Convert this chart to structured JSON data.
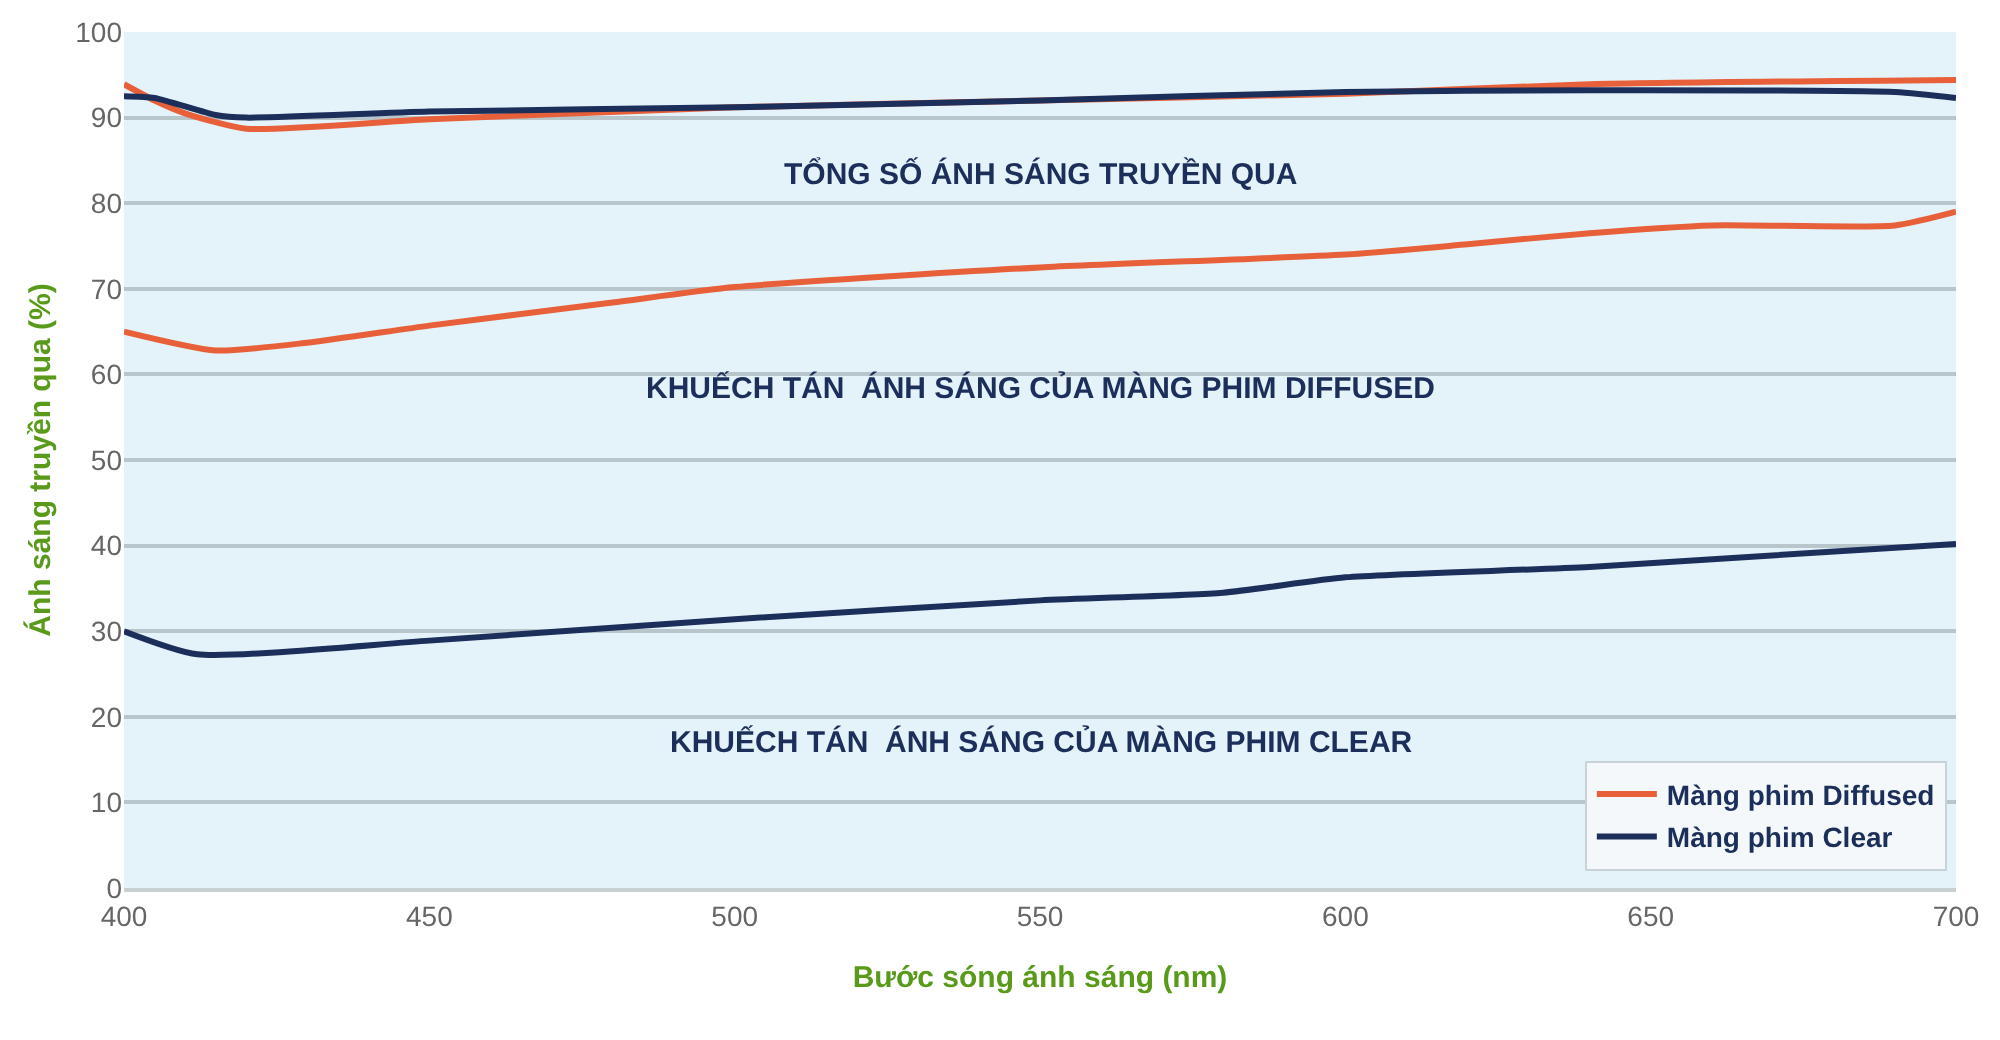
{
  "chart_data": {
    "type": "line",
    "xlabel": "Bước sóng ánh sáng (nm)",
    "ylabel": "Ánh sáng truyền qua (%)",
    "xlim": [
      400,
      700
    ],
    "xticks": [
      400,
      450,
      500,
      550,
      600,
      650,
      700
    ],
    "ylim": [
      0,
      100
    ],
    "yticks": [
      0,
      10,
      20,
      30,
      40,
      50,
      60,
      70,
      80,
      90,
      100
    ],
    "grid": "y",
    "legend": "bottom right",
    "marker": "none",
    "line_style": "solid",
    "annotations": [
      "TỔNG SỐ ÁNH SÁNG TRUYỀN QUA",
      "KHUẾCH TÁN  ÁNH SÁNG CỦA MÀNG PHIM DIFFUSED",
      "KHUẾCH TÁN  ÁNH SÁNG CỦA MÀNG PHIM CLEAR"
    ],
    "series": [
      {
        "name": "Màng phim Diffused",
        "color": "#e8603a",
        "x": [
          400,
          405,
          410,
          420,
          450,
          500,
          550,
          600,
          640,
          700
        ],
        "values": [
          93.9,
          92,
          90.5,
          88.7,
          89.8,
          91.2,
          92,
          92.8,
          93.9,
          94.4
        ]
      },
      {
        "name": "Màng phim Clear",
        "color": "#1c2f5a",
        "x": [
          400,
          405,
          415,
          420,
          450,
          500,
          550,
          600,
          640,
          690,
          700
        ],
        "values": [
          92.5,
          92.3,
          90.3,
          90,
          90.7,
          91.2,
          92,
          93,
          93.2,
          93,
          92.3
        ]
      },
      {
        "color": "#e8603a",
        "x": [
          400,
          415,
          430,
          450,
          480,
          500,
          550,
          600,
          620,
          640,
          660,
          690,
          700
        ],
        "values": [
          65,
          62.8,
          63.7,
          65.7,
          68.4,
          70.2,
          72.5,
          74,
          75.2,
          76.5,
          77.4,
          77.4,
          79
        ]
      },
      {
        "color": "#1c2f5a",
        "x": [
          400,
          412,
          450,
          500,
          550,
          580,
          600,
          640,
          700
        ],
        "values": [
          30,
          27.3,
          28.9,
          31.4,
          33.6,
          34.5,
          36.3,
          37.5,
          40.2
        ]
      }
    ]
  }
}
